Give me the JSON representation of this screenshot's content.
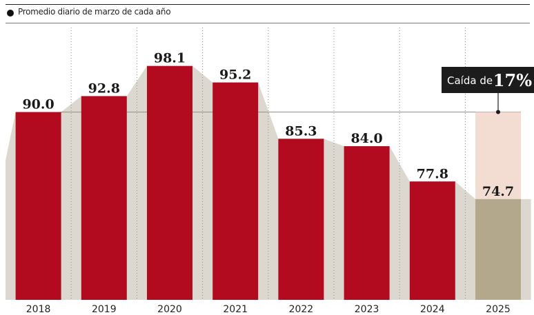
{
  "header": {
    "subtitle": "Promedio diario de marzo de cada año"
  },
  "chart_data": {
    "type": "bar",
    "categories": [
      "2018",
      "2019",
      "2020",
      "2021",
      "2022",
      "2023",
      "2024",
      "2025"
    ],
    "values": [
      90.0,
      92.8,
      98.1,
      95.2,
      85.3,
      84.0,
      77.8,
      74.7
    ],
    "value_labels": [
      "90.0",
      "92.8",
      "98.1",
      "95.2",
      "85.3",
      "84.0",
      "77.8",
      "74.7"
    ],
    "reference_line": 90.0,
    "ylim": [
      57,
      100
    ],
    "grid": false,
    "annotation": {
      "label": "Caída de",
      "value": "17%",
      "target_category": "2025"
    },
    "colors": {
      "bar": "#b20a1e",
      "bar_2025": "#b3a78c",
      "ghost_2025": "#f3ddd3",
      "area": "#dcd8cf",
      "reference_line": "#9a958c",
      "annotation_bg": "#1c1c1c"
    }
  }
}
